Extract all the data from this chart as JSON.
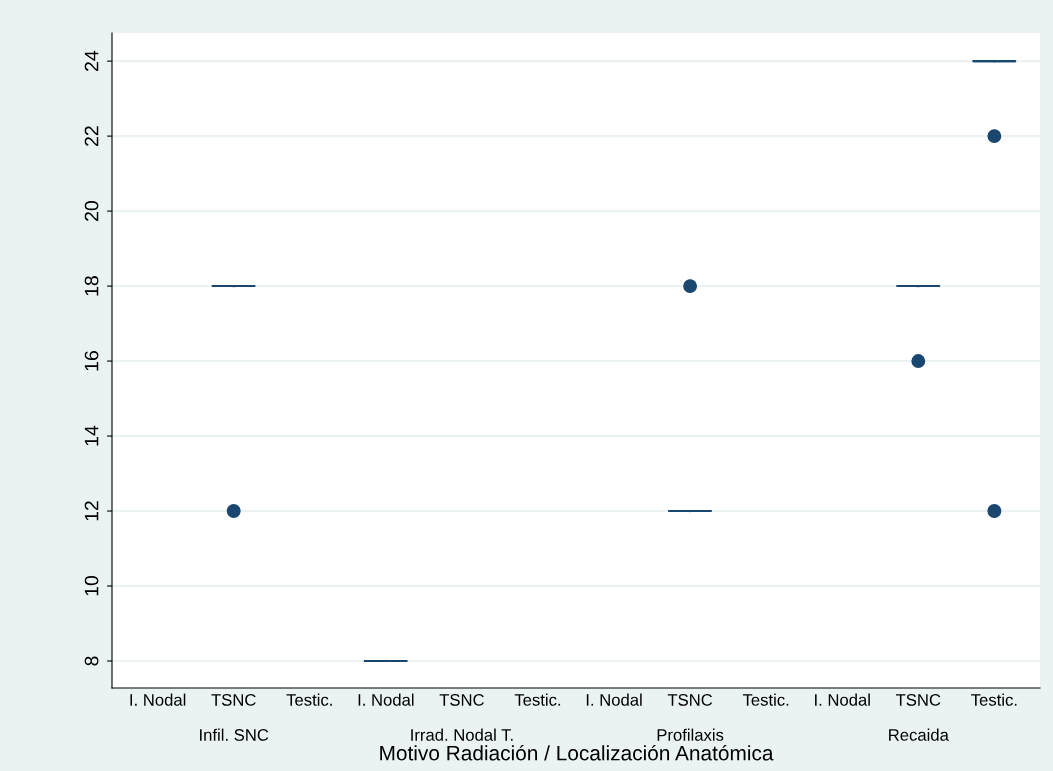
{
  "chart_data": {
    "type": "box",
    "xlabel": "Motivo Radiación / Localización Anatómica",
    "categories": [
      "I. Nodal",
      "TSNC",
      "Testic.",
      "I. Nodal",
      "TSNC",
      "Testic.",
      "I. Nodal",
      "TSNC",
      "Testic.",
      "I. Nodal",
      "TSNC",
      "Testic."
    ],
    "annotations": [
      "Infil. SNC",
      "Irrad. Nodal T.",
      "Profilaxis",
      "Recaida"
    ],
    "boxes": [
      null,
      {
        "low": 18,
        "q1": 18,
        "median": 18,
        "q3": 18,
        "high": 18,
        "outliers": [
          12
        ]
      },
      null,
      {
        "low": 8,
        "q1": 8,
        "median": 8,
        "q3": 8,
        "high": 8
      },
      null,
      null,
      null,
      {
        "low": 12,
        "q1": 12,
        "median": 12,
        "q3": 12,
        "high": 12,
        "outliers": [
          18
        ]
      },
      null,
      null,
      {
        "low": 18,
        "q1": 18,
        "median": 18,
        "q3": 18,
        "high": 18,
        "outliers": [
          16
        ]
      },
      {
        "low": 24,
        "q1": 24,
        "median": 24,
        "q3": 24,
        "high": 24,
        "outliers": [
          22,
          12
        ]
      }
    ],
    "color": "#1a476f",
    "ylim": [
      7.28,
      24.75
    ],
    "yticks": [
      8,
      10,
      12,
      14,
      16,
      18,
      20,
      22,
      24
    ],
    "grid": "y",
    "marker": "circle"
  }
}
